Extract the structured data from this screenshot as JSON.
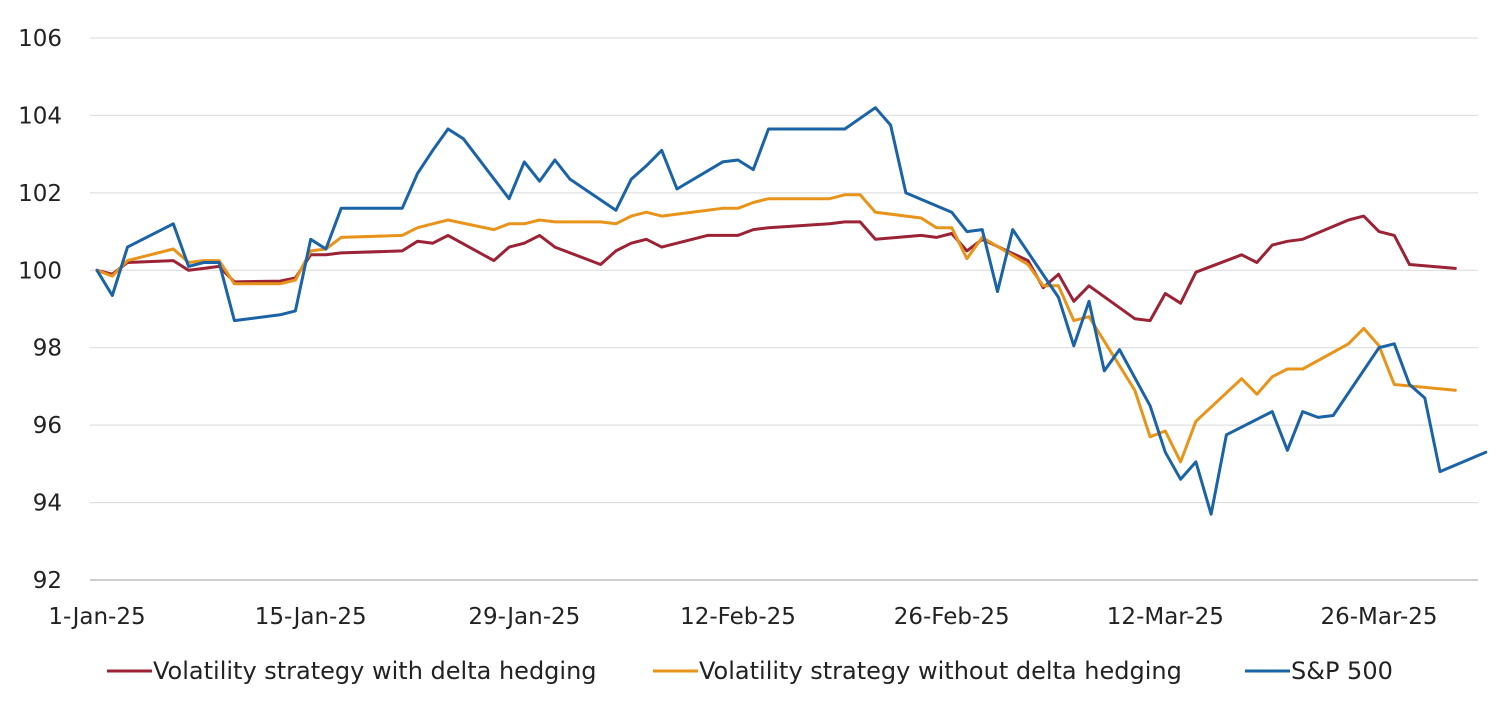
{
  "chart_data": {
    "type": "line",
    "title": "",
    "xlabel": "",
    "ylabel": "",
    "ylim": [
      92,
      106
    ],
    "yticks": [
      92,
      94,
      96,
      98,
      100,
      102,
      104,
      106
    ],
    "xticks": [
      {
        "date": "2025-01-01",
        "label": "1-Jan-25"
      },
      {
        "date": "2025-01-15",
        "label": "15-Jan-25"
      },
      {
        "date": "2025-01-29",
        "label": "29-Jan-25"
      },
      {
        "date": "2025-02-12",
        "label": "12-Feb-25"
      },
      {
        "date": "2025-02-26",
        "label": "26-Feb-25"
      },
      {
        "date": "2025-03-12",
        "label": "12-Mar-25"
      },
      {
        "date": "2025-03-26",
        "label": "26-Mar-25"
      }
    ],
    "xlim": [
      "2025-01-01",
      "2025-03-31"
    ],
    "grid": true,
    "legend_position": "bottom",
    "series": [
      {
        "name": "Volatility strategy with delta hedging",
        "color": "#9b2335",
        "points": [
          [
            "2025-01-01",
            100.0
          ],
          [
            "2025-01-02",
            99.9
          ],
          [
            "2025-01-03",
            100.2
          ],
          [
            "2025-01-06",
            100.25
          ],
          [
            "2025-01-07",
            100.0
          ],
          [
            "2025-01-08",
            100.05
          ],
          [
            "2025-01-09",
            100.1
          ],
          [
            "2025-01-10",
            99.7
          ],
          [
            "2025-01-13",
            99.72
          ],
          [
            "2025-01-14",
            99.8
          ],
          [
            "2025-01-15",
            100.4
          ],
          [
            "2025-01-16",
            100.4
          ],
          [
            "2025-01-17",
            100.45
          ],
          [
            "2025-01-21",
            100.5
          ],
          [
            "2025-01-22",
            100.75
          ],
          [
            "2025-01-23",
            100.7
          ],
          [
            "2025-01-24",
            100.9
          ],
          [
            "2025-01-27",
            100.25
          ],
          [
            "2025-01-28",
            100.6
          ],
          [
            "2025-01-29",
            100.7
          ],
          [
            "2025-01-30",
            100.9
          ],
          [
            "2025-01-31",
            100.6
          ],
          [
            "2025-02-03",
            100.15
          ],
          [
            "2025-02-04",
            100.5
          ],
          [
            "2025-02-05",
            100.7
          ],
          [
            "2025-02-06",
            100.8
          ],
          [
            "2025-02-07",
            100.6
          ],
          [
            "2025-02-10",
            100.9
          ],
          [
            "2025-02-11",
            100.9
          ],
          [
            "2025-02-12",
            100.9
          ],
          [
            "2025-02-13",
            101.05
          ],
          [
            "2025-02-14",
            101.1
          ],
          [
            "2025-02-18",
            101.2
          ],
          [
            "2025-02-19",
            101.25
          ],
          [
            "2025-02-20",
            101.25
          ],
          [
            "2025-02-21",
            100.8
          ],
          [
            "2025-02-24",
            100.9
          ],
          [
            "2025-02-25",
            100.85
          ],
          [
            "2025-02-26",
            100.95
          ],
          [
            "2025-02-27",
            100.5
          ],
          [
            "2025-02-28",
            100.8
          ],
          [
            "2025-03-03",
            100.25
          ],
          [
            "2025-03-04",
            99.55
          ],
          [
            "2025-03-05",
            99.9
          ],
          [
            "2025-03-06",
            99.2
          ],
          [
            "2025-03-07",
            99.6
          ],
          [
            "2025-03-10",
            98.75
          ],
          [
            "2025-03-11",
            98.7
          ],
          [
            "2025-03-12",
            99.4
          ],
          [
            "2025-03-13",
            99.15
          ],
          [
            "2025-03-14",
            99.95
          ],
          [
            "2025-03-17",
            100.4
          ],
          [
            "2025-03-18",
            100.2
          ],
          [
            "2025-03-19",
            100.65
          ],
          [
            "2025-03-20",
            100.75
          ],
          [
            "2025-03-21",
            100.8
          ],
          [
            "2025-03-24",
            101.3
          ],
          [
            "2025-03-25",
            101.4
          ],
          [
            "2025-03-26",
            101.0
          ],
          [
            "2025-03-27",
            100.9
          ],
          [
            "2025-03-28",
            100.15
          ],
          [
            "2025-03-31",
            100.05
          ]
        ]
      },
      {
        "name": "Volatility strategy without delta hedging",
        "color": "#e8941a",
        "points": [
          [
            "2025-01-01",
            100.0
          ],
          [
            "2025-01-02",
            99.85
          ],
          [
            "2025-01-03",
            100.25
          ],
          [
            "2025-01-06",
            100.55
          ],
          [
            "2025-01-07",
            100.2
          ],
          [
            "2025-01-08",
            100.25
          ],
          [
            "2025-01-09",
            100.25
          ],
          [
            "2025-01-10",
            99.65
          ],
          [
            "2025-01-13",
            99.65
          ],
          [
            "2025-01-14",
            99.75
          ],
          [
            "2025-01-15",
            100.5
          ],
          [
            "2025-01-16",
            100.55
          ],
          [
            "2025-01-17",
            100.85
          ],
          [
            "2025-01-21",
            100.9
          ],
          [
            "2025-01-22",
            101.1
          ],
          [
            "2025-01-23",
            101.2
          ],
          [
            "2025-01-24",
            101.3
          ],
          [
            "2025-01-27",
            101.05
          ],
          [
            "2025-01-28",
            101.2
          ],
          [
            "2025-01-29",
            101.2
          ],
          [
            "2025-01-30",
            101.3
          ],
          [
            "2025-01-31",
            101.25
          ],
          [
            "2025-02-03",
            101.25
          ],
          [
            "2025-02-04",
            101.2
          ],
          [
            "2025-02-05",
            101.4
          ],
          [
            "2025-02-06",
            101.5
          ],
          [
            "2025-02-07",
            101.4
          ],
          [
            "2025-02-10",
            101.55
          ],
          [
            "2025-02-11",
            101.6
          ],
          [
            "2025-02-12",
            101.6
          ],
          [
            "2025-02-13",
            101.75
          ],
          [
            "2025-02-14",
            101.85
          ],
          [
            "2025-02-18",
            101.85
          ],
          [
            "2025-02-19",
            101.95
          ],
          [
            "2025-02-20",
            101.95
          ],
          [
            "2025-02-21",
            101.5
          ],
          [
            "2025-02-24",
            101.35
          ],
          [
            "2025-02-25",
            101.1
          ],
          [
            "2025-02-26",
            101.1
          ],
          [
            "2025-02-27",
            100.3
          ],
          [
            "2025-02-28",
            100.85
          ],
          [
            "2025-03-03",
            100.15
          ],
          [
            "2025-03-04",
            99.6
          ],
          [
            "2025-03-05",
            99.6
          ],
          [
            "2025-03-06",
            98.7
          ],
          [
            "2025-03-07",
            98.8
          ],
          [
            "2025-03-10",
            96.9
          ],
          [
            "2025-03-11",
            95.7
          ],
          [
            "2025-03-12",
            95.85
          ],
          [
            "2025-03-13",
            95.05
          ],
          [
            "2025-03-14",
            96.1
          ],
          [
            "2025-03-17",
            97.2
          ],
          [
            "2025-03-18",
            96.8
          ],
          [
            "2025-03-19",
            97.25
          ],
          [
            "2025-03-20",
            97.45
          ],
          [
            "2025-03-21",
            97.45
          ],
          [
            "2025-03-24",
            98.1
          ],
          [
            "2025-03-25",
            98.5
          ],
          [
            "2025-03-26",
            98.05
          ],
          [
            "2025-03-27",
            97.05
          ],
          [
            "2025-03-31",
            96.9
          ]
        ]
      },
      {
        "name": "S&P 500",
        "color": "#1a63a6",
        "points": [
          [
            "2025-01-01",
            100.0
          ],
          [
            "2025-01-02",
            99.35
          ],
          [
            "2025-01-03",
            100.6
          ],
          [
            "2025-01-06",
            101.2
          ],
          [
            "2025-01-07",
            100.1
          ],
          [
            "2025-01-08",
            100.2
          ],
          [
            "2025-01-09",
            100.2
          ],
          [
            "2025-01-10",
            98.7
          ],
          [
            "2025-01-13",
            98.85
          ],
          [
            "2025-01-14",
            98.95
          ],
          [
            "2025-01-15",
            100.8
          ],
          [
            "2025-01-16",
            100.55
          ],
          [
            "2025-01-17",
            101.6
          ],
          [
            "2025-01-21",
            101.6
          ],
          [
            "2025-01-22",
            102.5
          ],
          [
            "2025-01-23",
            103.1
          ],
          [
            "2025-01-24",
            103.65
          ],
          [
            "2025-01-25",
            103.4
          ],
          [
            "2025-01-28",
            101.85
          ],
          [
            "2025-01-29",
            102.8
          ],
          [
            "2025-01-30",
            102.3
          ],
          [
            "2025-01-31",
            102.85
          ],
          [
            "2025-02-01",
            102.35
          ],
          [
            "2025-02-04",
            101.55
          ],
          [
            "2025-02-05",
            102.35
          ],
          [
            "2025-02-06",
            102.7
          ],
          [
            "2025-02-07",
            103.1
          ],
          [
            "2025-02-08",
            102.1
          ],
          [
            "2025-02-11",
            102.8
          ],
          [
            "2025-02-12",
            102.85
          ],
          [
            "2025-02-13",
            102.6
          ],
          [
            "2025-02-14",
            103.65
          ],
          [
            "2025-02-18",
            103.65
          ],
          [
            "2025-02-19",
            103.65
          ],
          [
            "2025-02-21",
            104.2
          ],
          [
            "2025-02-22",
            103.75
          ],
          [
            "2025-02-23",
            102.0
          ],
          [
            "2025-02-26",
            101.5
          ],
          [
            "2025-02-27",
            101.0
          ],
          [
            "2025-02-28",
            101.05
          ],
          [
            "2025-03-01",
            99.45
          ],
          [
            "2025-03-02",
            101.05
          ],
          [
            "2025-03-05",
            99.3
          ],
          [
            "2025-03-06",
            98.05
          ],
          [
            "2025-03-07",
            99.2
          ],
          [
            "2025-03-08",
            97.4
          ],
          [
            "2025-03-09",
            97.95
          ],
          [
            "2025-03-11",
            96.5
          ],
          [
            "2025-03-12",
            95.3
          ],
          [
            "2025-03-13",
            94.6
          ],
          [
            "2025-03-14",
            95.05
          ],
          [
            "2025-03-15",
            93.7
          ],
          [
            "2025-03-16",
            95.75
          ],
          [
            "2025-03-19",
            96.35
          ],
          [
            "2025-03-20",
            95.35
          ],
          [
            "2025-03-21",
            96.35
          ],
          [
            "2025-03-22",
            96.2
          ],
          [
            "2025-03-23",
            96.25
          ],
          [
            "2025-03-26",
            98.0
          ],
          [
            "2025-03-27",
            98.1
          ],
          [
            "2025-03-28",
            97.05
          ],
          [
            "2025-03-29",
            96.7
          ],
          [
            "2025-03-30",
            94.8
          ],
          [
            "2025-04-02",
            95.3
          ]
        ]
      }
    ]
  }
}
